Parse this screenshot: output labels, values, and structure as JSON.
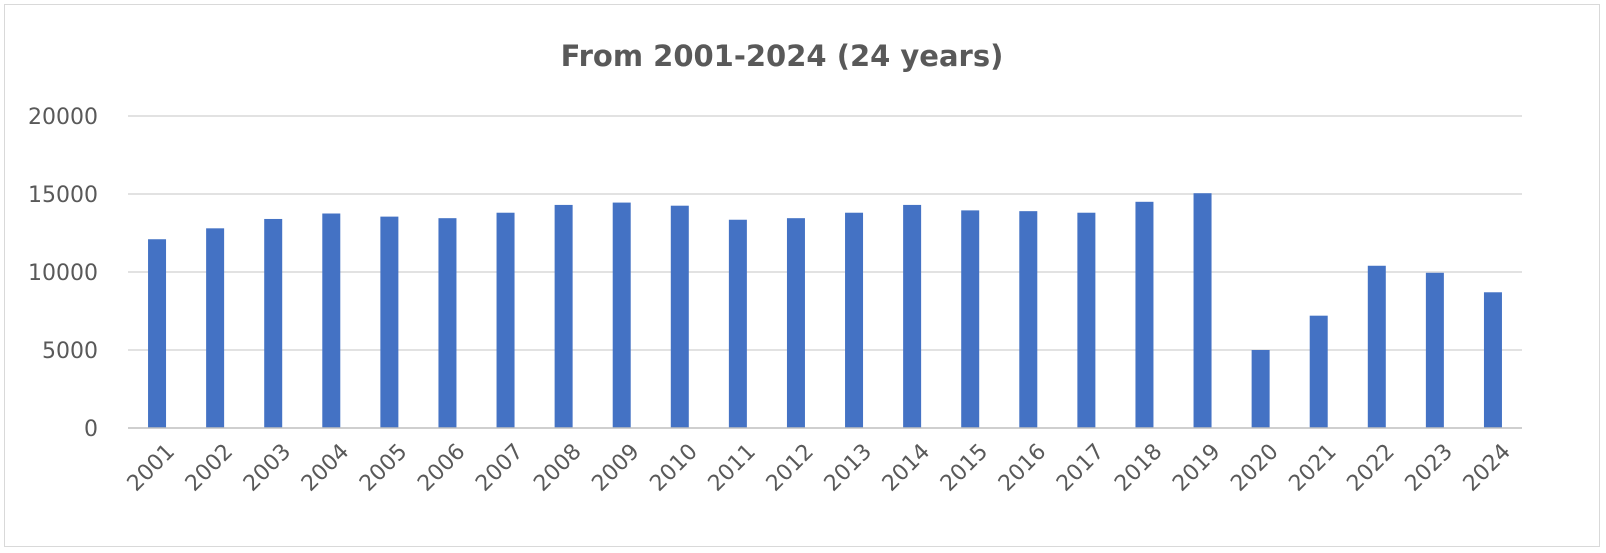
{
  "chart_data": {
    "type": "bar",
    "title": "From 2001-2024 (24 years)",
    "xlabel": "",
    "ylabel": "",
    "categories": [
      "2001",
      "2002",
      "2003",
      "2004",
      "2005",
      "2006",
      "2007",
      "2008",
      "2009",
      "2010",
      "2011",
      "2012",
      "2013",
      "2014",
      "2015",
      "2016",
      "2017",
      "2018",
      "2019",
      "2020",
      "2021",
      "2022",
      "2023",
      "2024"
    ],
    "values": [
      12100,
      12800,
      13400,
      13750,
      13550,
      13450,
      13800,
      14300,
      14450,
      14250,
      13350,
      13450,
      13800,
      14300,
      13950,
      13900,
      13800,
      14500,
      15050,
      5000,
      7200,
      10400,
      9950,
      8700
    ],
    "ylim": [
      0,
      20000
    ],
    "yticks": [
      "0",
      "5000",
      "10000",
      "15000",
      "20000"
    ],
    "grid": true,
    "legend": "none",
    "bar_color": "#4472c4"
  }
}
